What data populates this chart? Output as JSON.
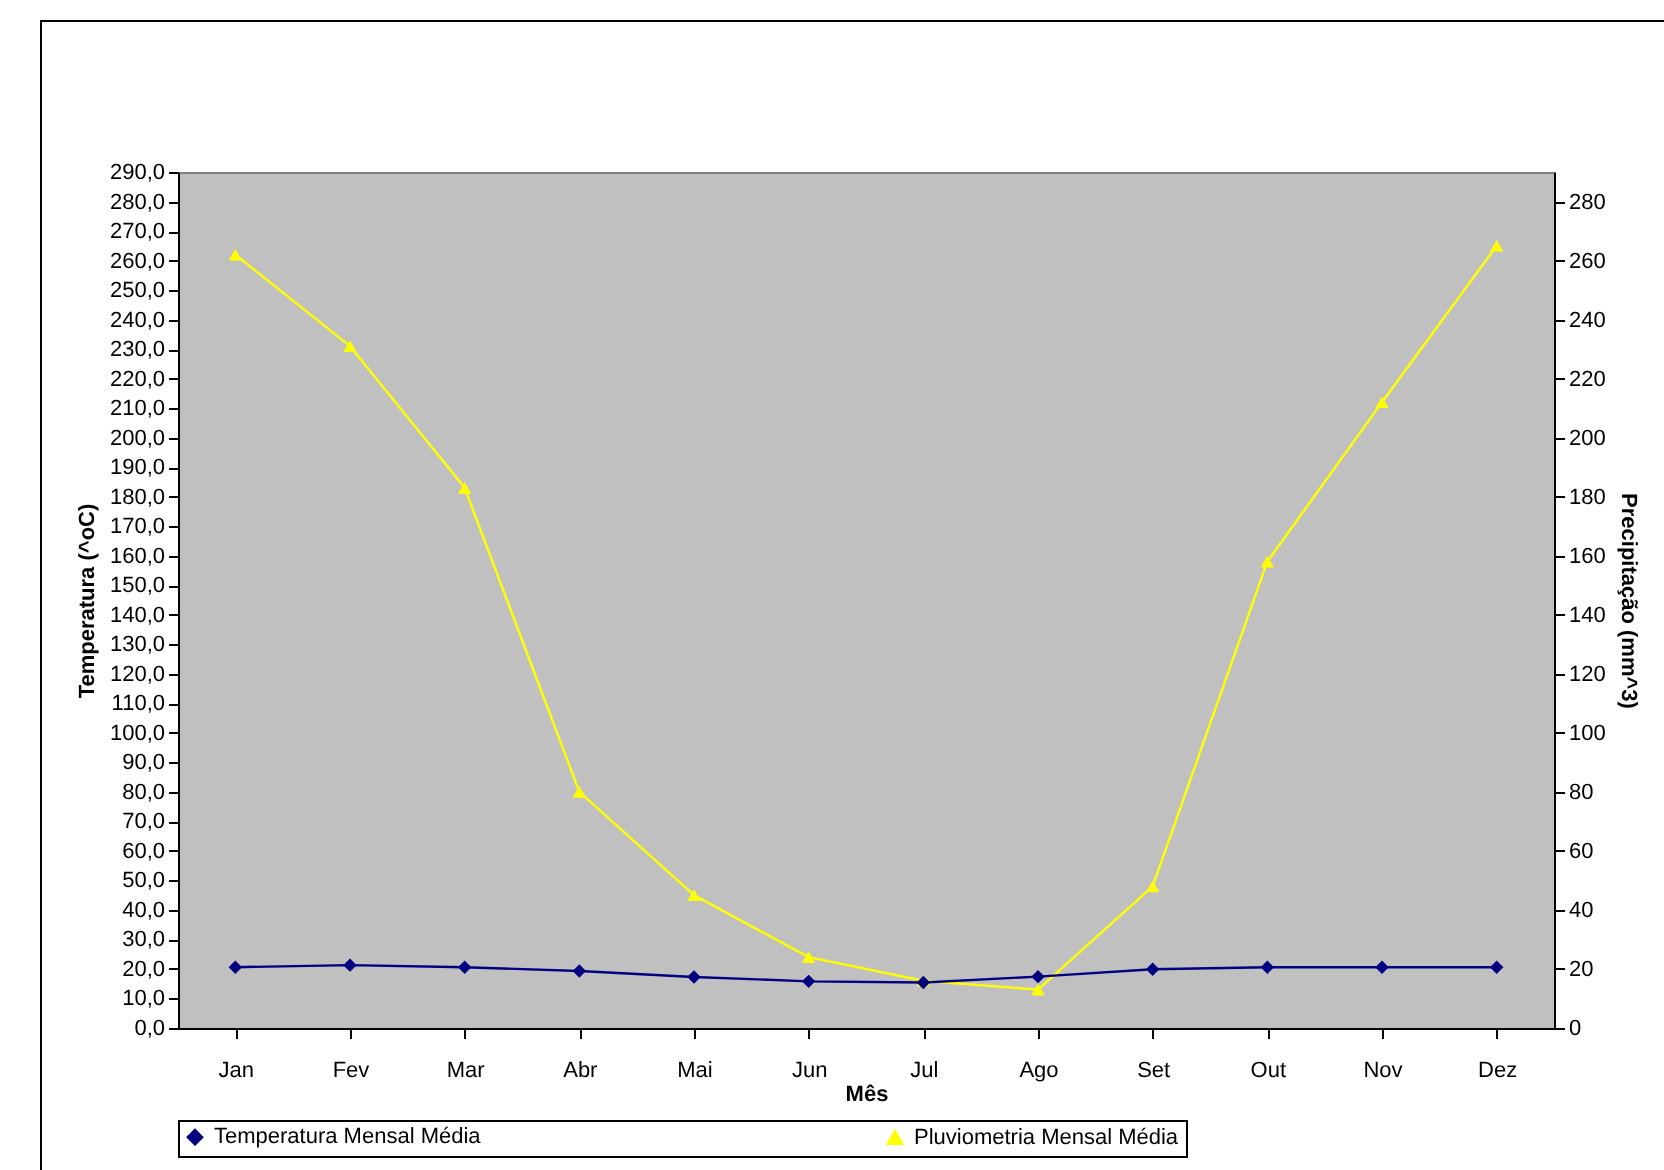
{
  "chart_data": {
    "type": "line",
    "xlabel": "Mês",
    "ylabel": "Temperatura (^oC)",
    "y2label": "Precipitação (mm^3)",
    "categories": [
      "Jan",
      "Fev",
      "Mar",
      "Abr",
      "Mai",
      "Jun",
      "Jul",
      "Ago",
      "Set",
      "Out",
      "Nov",
      "Dez"
    ],
    "series": [
      {
        "name": "Temperatura Mensal Média",
        "color": "#000080",
        "marker": "diamond",
        "values": [
          20.6,
          21.3,
          20.6,
          19.3,
          17.3,
          15.8,
          15.4,
          17.4,
          19.9,
          20.6,
          20.6,
          20.6
        ]
      },
      {
        "name": "Pluviometria Mensal Média",
        "color": "#ffff00",
        "marker": "triangle",
        "axis": "y2",
        "values": [
          262,
          231,
          183,
          80,
          45,
          24,
          16,
          13,
          48,
          158,
          212,
          265
        ]
      }
    ],
    "ylim": [
      0,
      290
    ],
    "yticks": [
      {
        "value": 0,
        "label": "0,0"
      },
      {
        "value": 10,
        "label": "10,0"
      },
      {
        "value": 20,
        "label": "20,0"
      },
      {
        "value": 30,
        "label": "30,0"
      },
      {
        "value": 40,
        "label": "40,0"
      },
      {
        "value": 50,
        "label": "50,0"
      },
      {
        "value": 60,
        "label": "60,0"
      },
      {
        "value": 70,
        "label": "70,0"
      },
      {
        "value": 80,
        "label": "80,0"
      },
      {
        "value": 90,
        "label": "90,0"
      },
      {
        "value": 100,
        "label": "100,0"
      },
      {
        "value": 110,
        "label": "110,0"
      },
      {
        "value": 120,
        "label": "120,0"
      },
      {
        "value": 130,
        "label": "130,0"
      },
      {
        "value": 140,
        "label": "140,0"
      },
      {
        "value": 150,
        "label": "150,0"
      },
      {
        "value": 160,
        "label": "160,0"
      },
      {
        "value": 170,
        "label": "170,0"
      },
      {
        "value": 180,
        "label": "180,0"
      },
      {
        "value": 190,
        "label": "190,0"
      },
      {
        "value": 200,
        "label": "200,0"
      },
      {
        "value": 210,
        "label": "210,0"
      },
      {
        "value": 220,
        "label": "220,0"
      },
      {
        "value": 230,
        "label": "230,0"
      },
      {
        "value": 240,
        "label": "240,0"
      },
      {
        "value": 250,
        "label": "250,0"
      },
      {
        "value": 260,
        "label": "260,0"
      },
      {
        "value": 270,
        "label": "270,0"
      },
      {
        "value": 280,
        "label": "280,0"
      },
      {
        "value": 290,
        "label": "290,0"
      }
    ],
    "y2lim": [
      0,
      290
    ],
    "y2ticks": [
      0,
      20,
      40,
      60,
      80,
      100,
      120,
      140,
      160,
      180,
      200,
      220,
      240,
      260,
      280
    ],
    "grid": false,
    "legend": "bottom",
    "line_style": "solid"
  }
}
